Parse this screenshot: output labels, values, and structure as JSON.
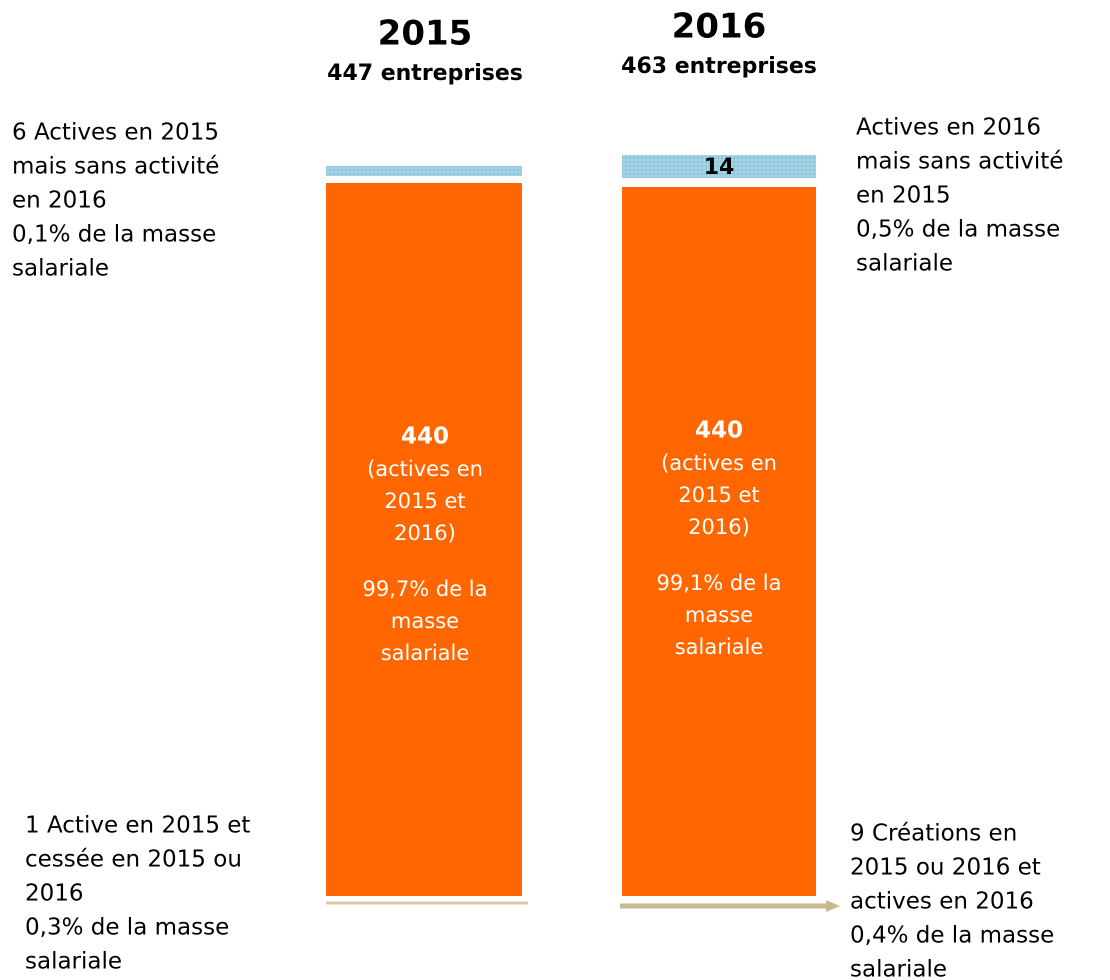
{
  "columns": [
    {
      "year": "2015",
      "count": "447 entreprises",
      "main_value": "440",
      "main_desc": [
        "(actives en",
        "2015 et",
        "2016)"
      ],
      "main_share": [
        "99,7% de la",
        "masse",
        "salariale"
      ],
      "top_label": [
        "6 Actives en 2015",
        "mais sans activité",
        "en 2016",
        "0,1% de la masse",
        "salariale"
      ],
      "bottom_label": [
        "1 Active en 2015 et",
        "cessée en 2015 ou",
        "2016",
        "0,3% de la masse",
        "salariale"
      ]
    },
    {
      "year": "2016",
      "count": "463 entreprises",
      "top_value": "14",
      "main_value": "440",
      "main_desc": [
        "(actives en",
        "2015 et",
        "2016)"
      ],
      "main_share": [
        "99,1% de la",
        "masse",
        "salariale"
      ],
      "top_label": [
        "Actives en 2016",
        "mais sans activité",
        "en 2015",
        "0,5% de la masse",
        "salariale"
      ],
      "bottom_label": [
        "9 Créations en",
        "2015 ou  2016 et",
        "actives en 2016",
        "0,4% de la masse",
        "salariale"
      ]
    }
  ]
}
